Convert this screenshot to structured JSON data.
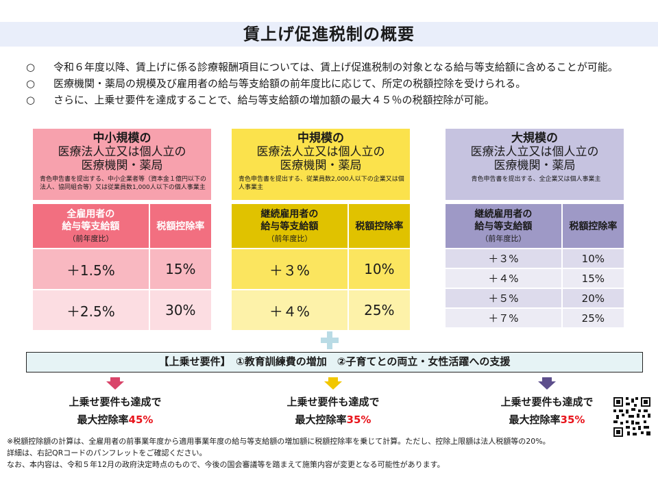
{
  "title": "賃上げ促進税制の概要",
  "bullets": [
    {
      "mark": "○",
      "text": "令和６年度以降、賃上げに係る診療報酬項目については、賃上げ促進税制の対象となる給与等支給額に含めることが可能。"
    },
    {
      "mark": "○",
      "text": "医療機関・薬局の規模及び雇用者の給与等支給額の前年度比に応じて、所定の税額控除を受けられる。"
    },
    {
      "mark": "○",
      "text": "さらに、上乗せ要件を達成することで、給与等支給額の増加額の最大４５％の税額控除が可能。"
    }
  ],
  "colors": {
    "small": "#f7a1ad",
    "small_head": "#f26f80",
    "mid": "#fbe24c",
    "mid_head": "#e0c200",
    "large": "#c6c3e0",
    "large_head": "#9e99c6"
  },
  "columns": [
    {
      "heading": "中小規模の",
      "subheading1": "医療法人立又は個人立の",
      "subheading2": "医療機関・薬局",
      "note": "青色申告書を提出する、中小企業者等（資本金１億円以下の法人、協同組合等）又は従業員数1,000人以下の個人事業主",
      "table": {
        "head_col1_line1": "全雇用者の",
        "head_col1_line2": "給与等支給額",
        "head_col1_sub": "（前年度比）",
        "head_col2": "税額控除率",
        "rows": [
          {
            "increase": "＋1.5%",
            "rate": "15%"
          },
          {
            "increase": "＋2.5%",
            "rate": "30%"
          }
        ]
      },
      "arrow_color": "#d9456a",
      "result_line1": "上乗せ要件も達成で",
      "result_prefix": "最大控除率",
      "result_pct": "45%"
    },
    {
      "heading": "中規模の",
      "subheading1": "医療法人立又は個人立の",
      "subheading2": "医療機関・薬局",
      "note": "青色申告書を提出する、従業員数2,000人以下の企業又は個人事業主",
      "table": {
        "head_col1_line1": "継続雇用者の",
        "head_col1_line2": "給与等支給額",
        "head_col1_sub": "（前年度比）",
        "head_col2": "税額控除率",
        "rows": [
          {
            "increase": "＋３%",
            "rate": "10%"
          },
          {
            "increase": "＋４%",
            "rate": "25%"
          }
        ]
      },
      "arrow_color": "#f2c700",
      "result_line1": "上乗せ要件も達成で",
      "result_prefix": "最大控除率",
      "result_pct": "35%"
    },
    {
      "heading": "大規模の",
      "subheading1": "医療法人立又は個人立の",
      "subheading2": "医療機関・薬局",
      "note": "青色申告書を提出する、全企業又は個人事業主",
      "table": {
        "head_col1_line1": "継続雇用者の",
        "head_col1_line2": "給与等支給額",
        "head_col1_sub": "（前年度比）",
        "head_col2": "税額控除率",
        "rows": [
          {
            "increase": "＋３%",
            "rate": "10%"
          },
          {
            "increase": "＋４%",
            "rate": "15%"
          },
          {
            "increase": "＋５%",
            "rate": "20%"
          },
          {
            "increase": "＋７%",
            "rate": "25%"
          }
        ]
      },
      "arrow_color": "#5d4f8c",
      "result_line1": "上乗せ要件も達成で",
      "result_prefix": "最大控除率",
      "result_pct": "35%"
    }
  ],
  "requirements": "【上乗せ要件】　①教育訓練費の増加　②子育てとの両立・女性活躍への支援",
  "qr_icon": "qr-code-icon",
  "footnotes": [
    "※税額控除額の計算は、全雇用者の前事業年度から適用事業年度の給与等支給額の増加額に税額控除率を乗じて計算。ただし、控除上限額は法人税額等の20%。",
    "詳細は、右記QRコードのパンフレットをご確認ください。",
    "なお、本内容は、令和５年12月の政府決定時点のもので、今後の国会審議等を踏まえて施策内容が変更となる可能性があります。"
  ]
}
